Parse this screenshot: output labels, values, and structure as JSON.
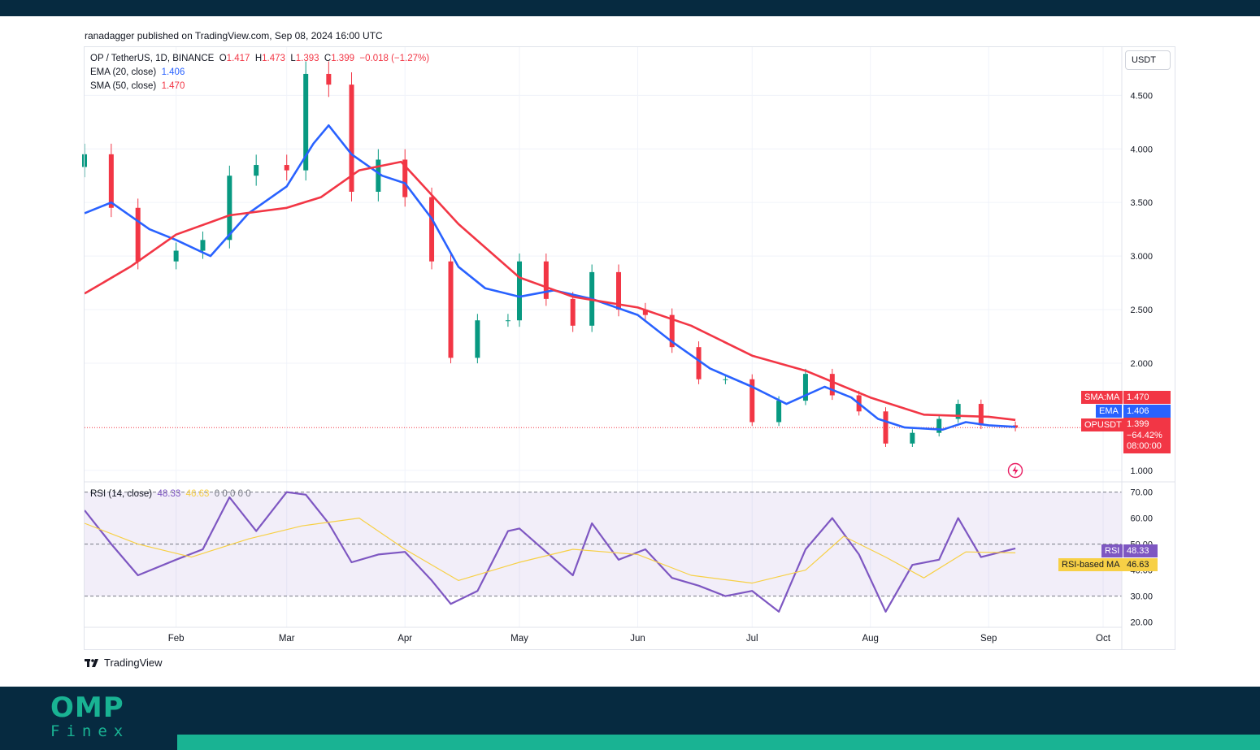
{
  "publisher_line": "ranadagger published on TradingView.com, Sep 08, 2024 16:00 UTC",
  "brand": {
    "label": "TradingView",
    "icon": "tradingview-logo-icon"
  },
  "watermark": {
    "line1": "OMP",
    "line2": "Finex"
  },
  "colors": {
    "ema": "#2962ff",
    "sma": "#f23645",
    "up": "#089981",
    "down": "#f23645",
    "rsi": "#7e57c2",
    "rsi_ma": "#f7d046",
    "footer": "#062a40",
    "accent": "#19b393"
  },
  "legend": {
    "symbol": "OP / TetherUS, 1D, BINANCE",
    "o_label": "O",
    "o_value": "1.417",
    "h_label": "H",
    "h_value": "1.473",
    "l_label": "L",
    "l_value": "1.393",
    "c_label": "C",
    "c_value": "1.399",
    "change": "−0.018 (−1.27%)",
    "ema_label": "EMA (20, close)",
    "ema_value": "1.406",
    "sma_label": "SMA (50, close)",
    "sma_value": "1.470",
    "rsi_label": "RSI (14, close)",
    "rsi_value": "48.33",
    "rsi_ma_value": "46.63",
    "rsi_extra": "0  0  0  0  0"
  },
  "currency_button": "USDT",
  "price_tags": {
    "sma_label": "SMA:MA",
    "sma_value": "1.470",
    "ema_label": "EMA",
    "ema_value": "1.406",
    "last_label": "OPUSDT",
    "last_value": "1.399",
    "last_change": "−64.42%",
    "countdown": "08:00:00",
    "rsi_label": "RSI",
    "rsi_value": "48.33",
    "rsi_ma_label": "RSI-based MA",
    "rsi_ma_value": "46.63"
  },
  "chart_data": {
    "type": "line",
    "symbol": "OPUSDT",
    "x_ticks": [
      "Feb",
      "Mar",
      "Apr",
      "May",
      "Jun",
      "Jul",
      "Aug",
      "Sep",
      "Oct"
    ],
    "y_ticks": [
      "4.500",
      "4.000",
      "3.500",
      "3.000",
      "2.500",
      "2.000",
      "1.000"
    ],
    "y_range": [
      0.9,
      4.95
    ],
    "rsi_ticks": [
      "70.00",
      "60.00",
      "50.00",
      "40.00",
      "30.00",
      "20.00"
    ],
    "rsi_range": [
      18,
      73
    ],
    "series": [
      {
        "name": "EMA (20, close)",
        "x": [
          "Jan 08",
          "Jan 15",
          "Jan 25",
          "Feb 01",
          "Feb 10",
          "Feb 20",
          "Mar 01",
          "Mar 08",
          "Mar 12",
          "Mar 18",
          "Mar 26",
          "Apr 01",
          "Apr 08",
          "Apr 15",
          "Apr 22",
          "May 01",
          "May 10",
          "May 20",
          "Jun 01",
          "Jun 10",
          "Jun 20",
          "Jul 01",
          "Jul 10",
          "Jul 20",
          "Jul 27",
          "Aug 03",
          "Aug 10",
          "Aug 20",
          "Aug 26",
          "Sep 01",
          "Sep 08"
        ],
        "values": [
          3.4,
          3.5,
          3.25,
          3.15,
          3.0,
          3.4,
          3.65,
          4.05,
          4.22,
          3.95,
          3.75,
          3.68,
          3.35,
          2.9,
          2.7,
          2.62,
          2.68,
          2.6,
          2.45,
          2.2,
          1.95,
          1.78,
          1.62,
          1.78,
          1.68,
          1.48,
          1.4,
          1.38,
          1.45,
          1.42,
          1.406
        ]
      },
      {
        "name": "SMA (50, close)",
        "x": [
          "Jan 08",
          "Jan 20",
          "Feb 01",
          "Feb 15",
          "Mar 01",
          "Mar 10",
          "Mar 20",
          "Mar 31",
          "Apr 15",
          "May 01",
          "May 15",
          "Jun 01",
          "Jun 15",
          "Jul 01",
          "Jul 15",
          "Aug 01",
          "Aug 15",
          "Sep 01",
          "Sep 08"
        ],
        "values": [
          2.65,
          2.9,
          3.2,
          3.38,
          3.45,
          3.55,
          3.8,
          3.88,
          3.3,
          2.8,
          2.62,
          2.52,
          2.35,
          2.07,
          1.93,
          1.68,
          1.52,
          1.5,
          1.47
        ]
      }
    ],
    "candles": {
      "x": [
        "Jan 08",
        "Jan 15",
        "Jan 22",
        "Feb 01",
        "Feb 08",
        "Feb 15",
        "Feb 22",
        "Mar 01",
        "Mar 06",
        "Mar 12",
        "Mar 18",
        "Mar 25",
        "Apr 01",
        "Apr 08",
        "Apr 13",
        "Apr 20",
        "Apr 28",
        "May 01",
        "May 08",
        "May 15",
        "May 20",
        "May 27",
        "Jun 03",
        "Jun 10",
        "Jun 17",
        "Jun 24",
        "Jul 01",
        "Jul 08",
        "Jul 15",
        "Jul 22",
        "Jul 29",
        "Aug 05",
        "Aug 12",
        "Aug 19",
        "Aug 24",
        "Aug 30",
        "Sep 08"
      ],
      "close": [
        3.95,
        3.45,
        2.95,
        3.05,
        3.15,
        3.75,
        3.85,
        3.8,
        4.7,
        4.6,
        3.6,
        3.9,
        3.55,
        2.95,
        2.05,
        2.4,
        2.4,
        2.95,
        2.6,
        2.35,
        2.85,
        2.5,
        2.45,
        2.15,
        1.85,
        1.85,
        1.45,
        1.65,
        1.9,
        1.7,
        1.55,
        1.25,
        1.35,
        1.48,
        1.62,
        1.42,
        1.399
      ]
    },
    "rsi_series": [
      {
        "name": "RSI (14, close)",
        "x": [
          "Jan 08",
          "Jan 15",
          "Jan 22",
          "Feb 01",
          "Feb 08",
          "Feb 15",
          "Feb 22",
          "Mar 01",
          "Mar 06",
          "Mar 12",
          "Mar 18",
          "Mar 25",
          "Apr 01",
          "Apr 08",
          "Apr 13",
          "Apr 20",
          "Apr 28",
          "May 01",
          "May 08",
          "May 15",
          "May 20",
          "May 27",
          "Jun 03",
          "Jun 10",
          "Jun 17",
          "Jun 24",
          "Jul 01",
          "Jul 08",
          "Jul 15",
          "Jul 22",
          "Jul 29",
          "Aug 05",
          "Aug 12",
          "Aug 19",
          "Aug 24",
          "Aug 30",
          "Sep 08"
        ],
        "values": [
          63,
          50,
          38,
          44,
          48,
          68,
          55,
          70,
          69,
          58,
          43,
          46,
          47,
          36,
          27,
          32,
          55,
          56,
          47,
          38,
          58,
          44,
          48,
          37,
          34,
          30,
          32,
          24,
          48,
          60,
          46,
          24,
          42,
          44,
          60,
          45,
          48.33
        ]
      },
      {
        "name": "RSI-based MA",
        "x": [
          "Jan 08",
          "Jan 22",
          "Feb 05",
          "Feb 20",
          "Mar 05",
          "Mar 20",
          "Apr 01",
          "Apr 15",
          "May 01",
          "May 15",
          "Jun 01",
          "Jun 15",
          "Jul 01",
          "Jul 15",
          "Jul 25",
          "Aug 05",
          "Aug 15",
          "Aug 26",
          "Sep 08"
        ],
        "values": [
          58,
          50,
          45,
          52,
          57,
          60,
          48,
          36,
          43,
          48,
          46,
          38,
          35,
          40,
          53,
          45,
          37,
          47,
          46.63
        ]
      }
    ]
  }
}
